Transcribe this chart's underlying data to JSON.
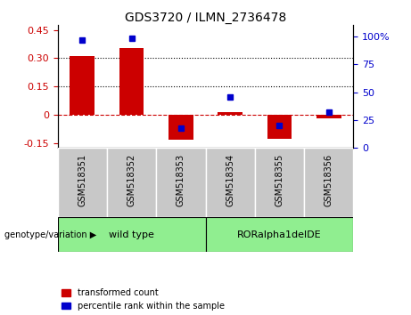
{
  "title": "GDS3720 / ILMN_2736478",
  "samples": [
    "GSM518351",
    "GSM518352",
    "GSM518353",
    "GSM518354",
    "GSM518355",
    "GSM518356"
  ],
  "red_bars": [
    0.31,
    0.355,
    -0.13,
    0.015,
    -0.125,
    -0.02
  ],
  "blue_dot_right_axis": [
    97,
    98,
    18,
    46,
    20,
    32
  ],
  "ylim_left": [
    -0.175,
    0.475
  ],
  "ylim_right": [
    0,
    110
  ],
  "yticks_left": [
    -0.15,
    0.0,
    0.15,
    0.3,
    0.45
  ],
  "ytick_labels_left": [
    "-0.15",
    "0",
    "0.15",
    "0.30",
    "0.45"
  ],
  "yticks_right": [
    0,
    25,
    50,
    75,
    100
  ],
  "ytick_labels_right": [
    "0",
    "25",
    "50",
    "75",
    "100%"
  ],
  "hlines": [
    0.15,
    0.3
  ],
  "zero_line": 0.0,
  "genotype_groups": [
    {
      "label": "wild type",
      "indices": [
        0,
        1,
        2
      ],
      "color": "#90EE90"
    },
    {
      "label": "RORalpha1delDE",
      "indices": [
        3,
        4,
        5
      ],
      "color": "#90EE90"
    }
  ],
  "group_label_prefix": "genotype/variation",
  "legend_items": [
    {
      "color": "#CC0000",
      "label": "transformed count"
    },
    {
      "color": "#0000CC",
      "label": "percentile rank within the sample"
    }
  ],
  "bar_color": "#CC0000",
  "dot_color": "#0000CC",
  "bar_width": 0.5,
  "background_xtick": "#C8C8C8",
  "zero_line_color": "#CC0000",
  "left_tick_color": "#CC0000",
  "right_tick_color": "#0000CC"
}
